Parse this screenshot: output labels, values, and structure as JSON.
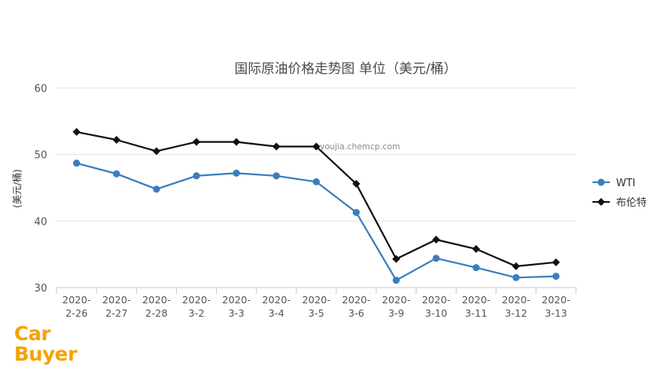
{
  "chart_data": {
    "type": "line",
    "title": "国际原油价格走势图 单位（美元/桶）",
    "ylabel": "(美元/桶)",
    "xlabel": "",
    "ylim": [
      30,
      60
    ],
    "yticks": [
      "30",
      "40",
      "50",
      "60"
    ],
    "categories": [
      [
        "2020-",
        "2-26"
      ],
      [
        "2020-",
        "2-27"
      ],
      [
        "2020-",
        "2-28"
      ],
      [
        "2020-",
        "3-2"
      ],
      [
        "2020-",
        "3-3"
      ],
      [
        "2020-",
        "3-4"
      ],
      [
        "2020-",
        "3-5"
      ],
      [
        "2020-",
        "3-6"
      ],
      [
        "2020-",
        "3-9"
      ],
      [
        "2020-",
        "3-10"
      ],
      [
        "2020-",
        "3-11"
      ],
      [
        "2020-",
        "3-12"
      ],
      [
        "2020-",
        "3-13"
      ]
    ],
    "series": [
      {
        "name": "WTI",
        "color": "#3b7dbd",
        "marker": "circle",
        "values": [
          48.7,
          47.1,
          44.8,
          46.8,
          47.2,
          46.8,
          45.9,
          41.3,
          31.1,
          34.4,
          33.0,
          31.5,
          31.7
        ]
      },
      {
        "name": "布伦特",
        "color": "#111111",
        "marker": "diamond",
        "values": [
          53.4,
          52.2,
          50.5,
          51.9,
          51.9,
          51.2,
          51.2,
          45.6,
          34.3,
          37.2,
          35.8,
          33.2,
          33.8
        ]
      }
    ],
    "grid": true,
    "legend_position": "right"
  },
  "watermark": "youjia.chemcp.com",
  "logo": {
    "line1": "Car",
    "line2": "Buyer",
    "color": "#f5a300"
  }
}
